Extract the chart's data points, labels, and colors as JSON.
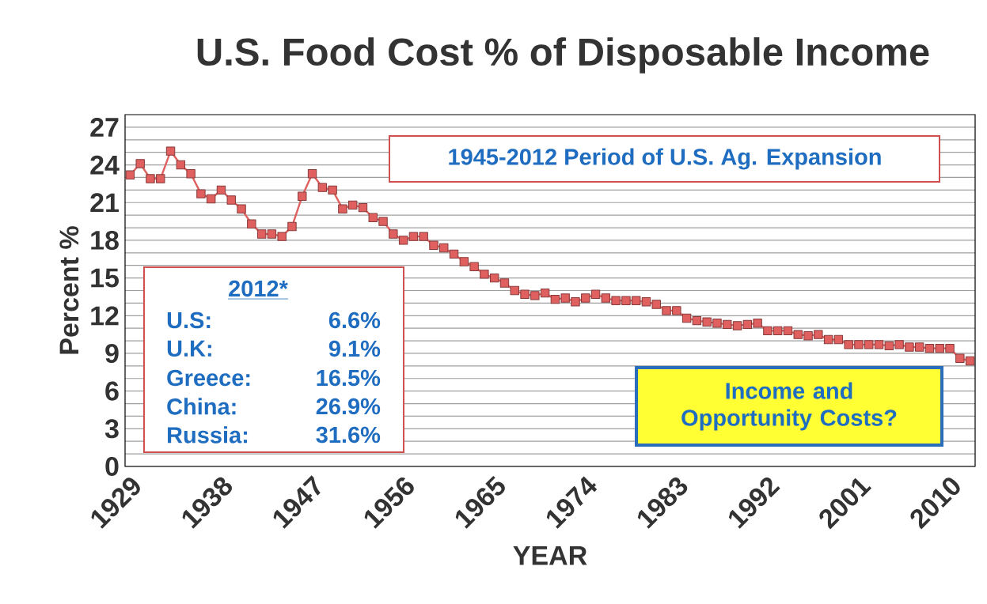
{
  "chart_data": {
    "type": "line",
    "title": "U.S. Food Cost % of Disposable Income",
    "xlabel": "YEAR",
    "ylabel": "Percent %",
    "x": [
      1929,
      1930,
      1931,
      1932,
      1933,
      1934,
      1935,
      1936,
      1937,
      1938,
      1939,
      1940,
      1941,
      1942,
      1943,
      1944,
      1945,
      1946,
      1947,
      1948,
      1949,
      1950,
      1951,
      1952,
      1953,
      1954,
      1955,
      1956,
      1957,
      1958,
      1959,
      1960,
      1961,
      1962,
      1963,
      1964,
      1965,
      1966,
      1967,
      1968,
      1969,
      1970,
      1971,
      1972,
      1973,
      1974,
      1975,
      1976,
      1977,
      1978,
      1979,
      1980,
      1981,
      1982,
      1983,
      1984,
      1985,
      1986,
      1987,
      1988,
      1989,
      1990,
      1991,
      1992,
      1993,
      1994,
      1995,
      1996,
      1997,
      1998,
      1999,
      2000,
      2001,
      2002,
      2003,
      2004,
      2005,
      2006,
      2007,
      2008,
      2009,
      2010,
      2011,
      2012
    ],
    "series": [
      {
        "color": "#e06060",
        "values": [
          23.2,
          24.1,
          22.9,
          22.9,
          25.1,
          24.0,
          23.3,
          21.7,
          21.3,
          22.0,
          21.2,
          20.5,
          19.3,
          18.5,
          18.5,
          18.3,
          19.1,
          21.5,
          23.3,
          22.2,
          22.0,
          20.5,
          20.8,
          20.6,
          19.8,
          19.5,
          18.5,
          18.0,
          18.3,
          18.3,
          17.6,
          17.4,
          16.9,
          16.3,
          15.9,
          15.3,
          15.0,
          14.6,
          14.0,
          13.7,
          13.6,
          13.8,
          13.3,
          13.4,
          13.1,
          13.4,
          13.7,
          13.4,
          13.2,
          13.2,
          13.2,
          13.1,
          12.9,
          12.4,
          12.4,
          11.8,
          11.6,
          11.5,
          11.4,
          11.3,
          11.2,
          11.3,
          11.4,
          10.8,
          10.8,
          10.8,
          10.5,
          10.4,
          10.5,
          10.1,
          10.1,
          9.7,
          9.7,
          9.7,
          9.7,
          9.6,
          9.7,
          9.5,
          9.5,
          9.4,
          9.4,
          9.4,
          8.6,
          8.4
        ]
      }
    ],
    "xlim": [
      1928.5,
      2012.5
    ],
    "xticks": [
      1929,
      1938,
      1947,
      1956,
      1965,
      1974,
      1983,
      1992,
      2001,
      2010
    ],
    "ylim": [
      0,
      28
    ],
    "yticks": [
      0,
      {
        "value": 1,
        "label": null
      },
      {
        "value": 2,
        "label": null
      },
      3,
      {
        "value": 4,
        "label": null
      },
      {
        "value": 5,
        "label": null
      },
      6,
      {
        "value": 7,
        "label": null
      },
      {
        "value": 8,
        "label": null
      },
      9,
      {
        "value": 10,
        "label": null
      },
      {
        "value": 11,
        "label": null
      },
      12,
      {
        "value": 13,
        "label": null
      },
      {
        "value": 14,
        "label": null
      },
      15,
      {
        "value": 16,
        "label": null
      },
      {
        "value": 17,
        "label": null
      },
      18,
      {
        "value": 19,
        "label": null
      },
      {
        "value": 20,
        "label": null
      },
      21,
      {
        "value": 22,
        "label": null
      },
      {
        "value": 23,
        "label": null
      },
      24,
      {
        "value": 25,
        "label": null
      },
      {
        "value": 26,
        "label": null
      },
      27
    ],
    "grid": "y",
    "marker": "square",
    "line_style": "solid",
    "annotations": [
      "1945-2012 Period of U.S. Ag. Expansion",
      "2012*",
      "U.S:",
      "6.6%",
      "U.K:",
      "9.1%",
      "Greece:",
      "16.5%",
      "China:",
      "26.9%",
      "Russia:",
      "31.6%",
      "Income and Opportunity Costs?"
    ]
  }
}
